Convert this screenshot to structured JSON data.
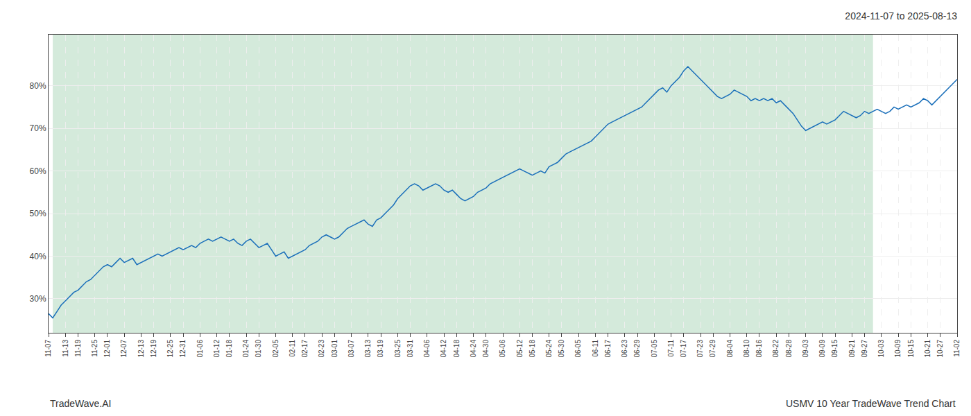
{
  "chart_data": {
    "type": "line",
    "title": "2024-11-07 to 2025-08-13",
    "annotations": [
      "TradeWave.AI",
      "USMV 10 Year TradeWave Trend Chart"
    ],
    "color": "#1a6fba",
    "grid": true,
    "shade_start": 1,
    "shade_end": 196,
    "shade_color": "#d4eadb",
    "ylim": [
      22,
      92
    ],
    "yticks": [
      {
        "value": 30,
        "label": "30%"
      },
      {
        "value": 40,
        "label": "40%"
      },
      {
        "value": 50,
        "label": "50%"
      },
      {
        "value": 60,
        "label": "60%"
      },
      {
        "value": 70,
        "label": "70%"
      },
      {
        "value": 80,
        "label": "80%"
      }
    ],
    "categories": [
      "11-07",
      null,
      null,
      null,
      "11-13",
      null,
      null,
      "11-19",
      null,
      null,
      null,
      "11-25",
      null,
      null,
      "12-01",
      null,
      null,
      null,
      "12-07",
      null,
      null,
      null,
      "12-13",
      null,
      null,
      "12-19",
      null,
      null,
      null,
      "12-25",
      null,
      null,
      "12-31",
      null,
      null,
      null,
      "01-06",
      null,
      null,
      null,
      "01-12",
      null,
      null,
      "01-18",
      null,
      null,
      null,
      "01-24",
      null,
      null,
      "01-30",
      null,
      null,
      null,
      "02-05",
      null,
      null,
      null,
      "02-11",
      null,
      null,
      "02-17",
      null,
      null,
      null,
      "02-23",
      null,
      null,
      "03-01",
      null,
      null,
      null,
      "03-07",
      null,
      null,
      null,
      "03-13",
      null,
      null,
      "03-19",
      null,
      null,
      null,
      "03-25",
      null,
      null,
      "03-31",
      null,
      null,
      null,
      "04-06",
      null,
      null,
      null,
      "04-12",
      null,
      null,
      "04-18",
      null,
      null,
      null,
      "04-24",
      null,
      null,
      "04-30",
      null,
      null,
      null,
      "05-06",
      null,
      null,
      null,
      "05-12",
      null,
      null,
      "05-18",
      null,
      null,
      null,
      "05-24",
      null,
      null,
      "05-30",
      null,
      null,
      null,
      "06-05",
      null,
      null,
      null,
      "06-11",
      null,
      null,
      "06-17",
      null,
      null,
      null,
      "06-23",
      null,
      null,
      "06-29",
      null,
      null,
      null,
      "07-05",
      null,
      null,
      null,
      "07-11",
      null,
      null,
      "07-17",
      null,
      null,
      null,
      "07-23",
      null,
      null,
      "07-29",
      null,
      null,
      null,
      "08-04",
      null,
      null,
      null,
      "08-10",
      null,
      null,
      "08-16",
      null,
      null,
      null,
      "08-22",
      null,
      null,
      "08-28",
      null,
      null,
      null,
      "09-03",
      null,
      null,
      null,
      "09-09",
      null,
      null,
      "09-15",
      null,
      null,
      null,
      "09-21",
      null,
      null,
      "09-27",
      null,
      null,
      null,
      "10-03",
      null,
      null,
      null,
      "10-09",
      null,
      null,
      "10-15",
      null,
      null,
      null,
      "10-21",
      null,
      null,
      "10-27",
      null,
      null,
      null,
      "11-02"
    ],
    "values": [
      26.5,
      25.5,
      27.0,
      28.5,
      29.5,
      30.5,
      31.5,
      32.0,
      33.0,
      34.0,
      34.5,
      35.5,
      36.5,
      37.5,
      38.0,
      37.5,
      38.5,
      39.5,
      38.5,
      39.0,
      39.5,
      38.0,
      38.5,
      39.0,
      39.5,
      40.0,
      40.5,
      40.0,
      40.5,
      41.0,
      41.5,
      42.0,
      41.5,
      42.0,
      42.5,
      42.0,
      43.0,
      43.5,
      44.0,
      43.5,
      44.0,
      44.5,
      44.0,
      43.5,
      44.0,
      43.0,
      42.5,
      43.5,
      44.0,
      43.0,
      42.0,
      42.5,
      43.0,
      41.5,
      40.0,
      40.5,
      41.0,
      39.5,
      40.0,
      40.5,
      41.0,
      41.5,
      42.5,
      43.0,
      43.5,
      44.5,
      45.0,
      44.5,
      44.0,
      44.5,
      45.5,
      46.5,
      47.0,
      47.5,
      48.0,
      48.5,
      47.5,
      47.0,
      48.5,
      49.0,
      50.0,
      51.0,
      52.0,
      53.5,
      54.5,
      55.5,
      56.5,
      57.0,
      56.5,
      55.5,
      56.0,
      56.5,
      57.0,
      56.5,
      55.5,
      55.0,
      55.5,
      54.5,
      53.5,
      53.0,
      53.5,
      54.0,
      55.0,
      55.5,
      56.0,
      57.0,
      57.5,
      58.0,
      58.5,
      59.0,
      59.5,
      60.0,
      60.5,
      60.0,
      59.5,
      59.0,
      59.5,
      60.0,
      59.5,
      61.0,
      61.5,
      62.0,
      63.0,
      64.0,
      64.5,
      65.0,
      65.5,
      66.0,
      66.5,
      67.0,
      68.0,
      69.0,
      70.0,
      71.0,
      71.5,
      72.0,
      72.5,
      73.0,
      73.5,
      74.0,
      74.5,
      75.0,
      76.0,
      77.0,
      78.0,
      79.0,
      79.5,
      78.5,
      80.0,
      81.0,
      82.0,
      83.5,
      84.5,
      83.5,
      82.5,
      81.5,
      80.5,
      79.5,
      78.5,
      77.5,
      77.0,
      77.5,
      78.0,
      79.0,
      78.5,
      78.0,
      77.5,
      76.5,
      77.0,
      76.5,
      77.0,
      76.5,
      77.0,
      76.0,
      76.5,
      75.5,
      74.5,
      73.5,
      72.0,
      70.5,
      69.5,
      70.0,
      70.5,
      71.0,
      71.5,
      71.0,
      71.5,
      72.0,
      73.0,
      74.0,
      73.5,
      73.0,
      72.5,
      73.0,
      74.0,
      73.5,
      74.0,
      74.5,
      74.0,
      73.5,
      74.0,
      75.0,
      74.5,
      75.0,
      75.5,
      75.0,
      75.5,
      76.0,
      77.0,
      76.5,
      75.5,
      76.5,
      77.5,
      78.5,
      79.5,
      80.5,
      81.5
    ]
  }
}
